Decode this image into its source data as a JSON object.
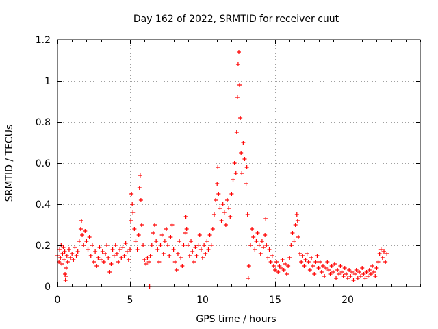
{
  "chart_data": {
    "type": "scatter",
    "title": "Day 162 of 2022, SRMTID for receiver cuut",
    "xlabel": "GPS time / hours",
    "ylabel": "SRMTID / TECUs",
    "xlim": [
      0,
      25
    ],
    "ylim": [
      0,
      1.2
    ],
    "xticks": [
      0,
      5,
      10,
      15,
      20
    ],
    "xtick_labels": [
      "0",
      "5",
      "10",
      "15",
      "20"
    ],
    "yticks": [
      0,
      0.2,
      0.4,
      0.6,
      0.8,
      1.0,
      1.2
    ],
    "ytick_labels": [
      "0",
      "0.2",
      "0.4",
      "0.6",
      "0.8",
      "1",
      "1.2"
    ],
    "grid": true,
    "marker": "+",
    "color": "#ff0000",
    "series": [
      {
        "name": "SRMTID",
        "points": [
          [
            0.0,
            0.15
          ],
          [
            0.1,
            0.12
          ],
          [
            0.15,
            0.18
          ],
          [
            0.2,
            0.14
          ],
          [
            0.25,
            0.2
          ],
          [
            0.3,
            0.11
          ],
          [
            0.35,
            0.16
          ],
          [
            0.4,
            0.19
          ],
          [
            0.45,
            0.13
          ],
          [
            0.5,
            0.17
          ],
          [
            0.52,
            0.06
          ],
          [
            0.55,
            0.03
          ],
          [
            0.58,
            0.05
          ],
          [
            0.6,
            0.09
          ],
          [
            0.65,
            0.15
          ],
          [
            0.7,
            0.12
          ],
          [
            0.8,
            0.18
          ],
          [
            0.9,
            0.14
          ],
          [
            1.0,
            0.16
          ],
          [
            1.1,
            0.13
          ],
          [
            1.2,
            0.19
          ],
          [
            1.3,
            0.15
          ],
          [
            1.4,
            0.17
          ],
          [
            1.5,
            0.22
          ],
          [
            1.6,
            0.28
          ],
          [
            1.65,
            0.32
          ],
          [
            1.7,
            0.25
          ],
          [
            1.8,
            0.2
          ],
          [
            1.9,
            0.27
          ],
          [
            2.0,
            0.22
          ],
          [
            2.1,
            0.18
          ],
          [
            2.2,
            0.24
          ],
          [
            2.3,
            0.15
          ],
          [
            2.4,
            0.2
          ],
          [
            2.5,
            0.12
          ],
          [
            2.6,
            0.17
          ],
          [
            2.7,
            0.1
          ],
          [
            2.8,
            0.14
          ],
          [
            2.9,
            0.19
          ],
          [
            3.0,
            0.13
          ],
          [
            3.1,
            0.17
          ],
          [
            3.2,
            0.12
          ],
          [
            3.3,
            0.16
          ],
          [
            3.4,
            0.2
          ],
          [
            3.5,
            0.14
          ],
          [
            3.6,
            0.07
          ],
          [
            3.7,
            0.11
          ],
          [
            3.8,
            0.18
          ],
          [
            3.9,
            0.15
          ],
          [
            4.0,
            0.2
          ],
          [
            4.1,
            0.16
          ],
          [
            4.2,
            0.12
          ],
          [
            4.3,
            0.18
          ],
          [
            4.4,
            0.14
          ],
          [
            4.5,
            0.19
          ],
          [
            4.6,
            0.15
          ],
          [
            4.7,
            0.21
          ],
          [
            4.8,
            0.17
          ],
          [
            4.9,
            0.13
          ],
          [
            5.0,
            0.18
          ],
          [
            5.05,
            0.32
          ],
          [
            5.1,
            0.45
          ],
          [
            5.15,
            0.4
          ],
          [
            5.2,
            0.36
          ],
          [
            5.3,
            0.28
          ],
          [
            5.4,
            0.22
          ],
          [
            5.5,
            0.18
          ],
          [
            5.6,
            0.25
          ],
          [
            5.65,
            0.48
          ],
          [
            5.7,
            0.54
          ],
          [
            5.75,
            0.42
          ],
          [
            5.8,
            0.3
          ],
          [
            5.9,
            0.2
          ],
          [
            6.0,
            0.13
          ],
          [
            6.1,
            0.11
          ],
          [
            6.2,
            0.14
          ],
          [
            6.3,
            0.12
          ],
          [
            6.35,
            0.0
          ],
          [
            6.4,
            0.15
          ],
          [
            6.5,
            0.2
          ],
          [
            6.6,
            0.26
          ],
          [
            6.7,
            0.3
          ],
          [
            6.8,
            0.22
          ],
          [
            6.9,
            0.18
          ],
          [
            7.0,
            0.12
          ],
          [
            7.1,
            0.2
          ],
          [
            7.2,
            0.25
          ],
          [
            7.3,
            0.16
          ],
          [
            7.4,
            0.22
          ],
          [
            7.5,
            0.28
          ],
          [
            7.6,
            0.2
          ],
          [
            7.7,
            0.15
          ],
          [
            7.8,
            0.24
          ],
          [
            7.9,
            0.3
          ],
          [
            8.0,
            0.18
          ],
          [
            8.1,
            0.12
          ],
          [
            8.2,
            0.08
          ],
          [
            8.3,
            0.16
          ],
          [
            8.4,
            0.22
          ],
          [
            8.5,
            0.14
          ],
          [
            8.6,
            0.1
          ],
          [
            8.7,
            0.2
          ],
          [
            8.8,
            0.26
          ],
          [
            8.85,
            0.34
          ],
          [
            8.9,
            0.28
          ],
          [
            9.0,
            0.2
          ],
          [
            9.1,
            0.15
          ],
          [
            9.2,
            0.22
          ],
          [
            9.3,
            0.17
          ],
          [
            9.4,
            0.12
          ],
          [
            9.5,
            0.19
          ],
          [
            9.6,
            0.15
          ],
          [
            9.7,
            0.2
          ],
          [
            9.8,
            0.25
          ],
          [
            9.9,
            0.18
          ],
          [
            10.0,
            0.14
          ],
          [
            10.1,
            0.2
          ],
          [
            10.2,
            0.16
          ],
          [
            10.3,
            0.22
          ],
          [
            10.4,
            0.18
          ],
          [
            10.5,
            0.25
          ],
          [
            10.6,
            0.2
          ],
          [
            10.7,
            0.28
          ],
          [
            10.8,
            0.35
          ],
          [
            10.9,
            0.42
          ],
          [
            11.0,
            0.5
          ],
          [
            11.05,
            0.58
          ],
          [
            11.1,
            0.45
          ],
          [
            11.2,
            0.38
          ],
          [
            11.3,
            0.32
          ],
          [
            11.4,
            0.4
          ],
          [
            11.5,
            0.36
          ],
          [
            11.6,
            0.3
          ],
          [
            11.7,
            0.42
          ],
          [
            11.8,
            0.38
          ],
          [
            11.9,
            0.34
          ],
          [
            12.0,
            0.45
          ],
          [
            12.1,
            0.52
          ],
          [
            12.2,
            0.6
          ],
          [
            12.3,
            0.55
          ],
          [
            12.35,
            0.75
          ],
          [
            12.4,
            0.92
          ],
          [
            12.45,
            1.08
          ],
          [
            12.5,
            1.14
          ],
          [
            12.55,
            0.98
          ],
          [
            12.6,
            0.82
          ],
          [
            12.65,
            0.65
          ],
          [
            12.7,
            0.55
          ],
          [
            12.8,
            0.7
          ],
          [
            12.9,
            0.62
          ],
          [
            13.0,
            0.5
          ],
          [
            13.05,
            0.58
          ],
          [
            13.1,
            0.35
          ],
          [
            13.15,
            0.04
          ],
          [
            13.2,
            0.1
          ],
          [
            13.3,
            0.2
          ],
          [
            13.4,
            0.28
          ],
          [
            13.5,
            0.24
          ],
          [
            13.6,
            0.18
          ],
          [
            13.7,
            0.22
          ],
          [
            13.8,
            0.26
          ],
          [
            13.9,
            0.2
          ],
          [
            14.0,
            0.16
          ],
          [
            14.1,
            0.22
          ],
          [
            14.2,
            0.19
          ],
          [
            14.3,
            0.25
          ],
          [
            14.35,
            0.33
          ],
          [
            14.4,
            0.2
          ],
          [
            14.5,
            0.14
          ],
          [
            14.6,
            0.18
          ],
          [
            14.7,
            0.12
          ],
          [
            14.8,
            0.15
          ],
          [
            14.9,
            0.1
          ],
          [
            15.0,
            0.08
          ],
          [
            15.1,
            0.12
          ],
          [
            15.2,
            0.07
          ],
          [
            15.3,
            0.1
          ],
          [
            15.4,
            0.09
          ],
          [
            15.5,
            0.13
          ],
          [
            15.6,
            0.08
          ],
          [
            15.7,
            0.11
          ],
          [
            15.8,
            0.06
          ],
          [
            15.9,
            0.1
          ],
          [
            16.0,
            0.14
          ],
          [
            16.1,
            0.2
          ],
          [
            16.2,
            0.26
          ],
          [
            16.3,
            0.22
          ],
          [
            16.4,
            0.3
          ],
          [
            16.5,
            0.35
          ],
          [
            16.55,
            0.32
          ],
          [
            16.6,
            0.24
          ],
          [
            16.7,
            0.16
          ],
          [
            16.8,
            0.12
          ],
          [
            16.9,
            0.15
          ],
          [
            17.0,
            0.1
          ],
          [
            17.1,
            0.13
          ],
          [
            17.2,
            0.16
          ],
          [
            17.3,
            0.12
          ],
          [
            17.4,
            0.08
          ],
          [
            17.5,
            0.14
          ],
          [
            17.6,
            0.1
          ],
          [
            17.7,
            0.06
          ],
          [
            17.8,
            0.12
          ],
          [
            17.9,
            0.15
          ],
          [
            18.0,
            0.09
          ],
          [
            18.1,
            0.12
          ],
          [
            18.2,
            0.07
          ],
          [
            18.3,
            0.1
          ],
          [
            18.4,
            0.05
          ],
          [
            18.5,
            0.09
          ],
          [
            18.6,
            0.12
          ],
          [
            18.7,
            0.08
          ],
          [
            18.8,
            0.06
          ],
          [
            18.9,
            0.1
          ],
          [
            19.0,
            0.07
          ],
          [
            19.1,
            0.11
          ],
          [
            19.2,
            0.04
          ],
          [
            19.3,
            0.08
          ],
          [
            19.4,
            0.06
          ],
          [
            19.5,
            0.1
          ],
          [
            19.6,
            0.07
          ],
          [
            19.7,
            0.05
          ],
          [
            19.8,
            0.09
          ],
          [
            19.9,
            0.06
          ],
          [
            20.0,
            0.04
          ],
          [
            20.1,
            0.08
          ],
          [
            20.2,
            0.05
          ],
          [
            20.3,
            0.07
          ],
          [
            20.4,
            0.03
          ],
          [
            20.5,
            0.06
          ],
          [
            20.6,
            0.08
          ],
          [
            20.7,
            0.04
          ],
          [
            20.8,
            0.07
          ],
          [
            20.9,
            0.05
          ],
          [
            21.0,
            0.09
          ],
          [
            21.1,
            0.06
          ],
          [
            21.2,
            0.04
          ],
          [
            21.3,
            0.07
          ],
          [
            21.4,
            0.05
          ],
          [
            21.5,
            0.08
          ],
          [
            21.6,
            0.06
          ],
          [
            21.7,
            0.1
          ],
          [
            21.8,
            0.07
          ],
          [
            21.9,
            0.05
          ],
          [
            22.0,
            0.09
          ],
          [
            22.1,
            0.12
          ],
          [
            22.2,
            0.16
          ],
          [
            22.3,
            0.18
          ],
          [
            22.4,
            0.14
          ],
          [
            22.5,
            0.17
          ],
          [
            22.6,
            0.12
          ],
          [
            22.7,
            0.16
          ]
        ]
      }
    ]
  }
}
